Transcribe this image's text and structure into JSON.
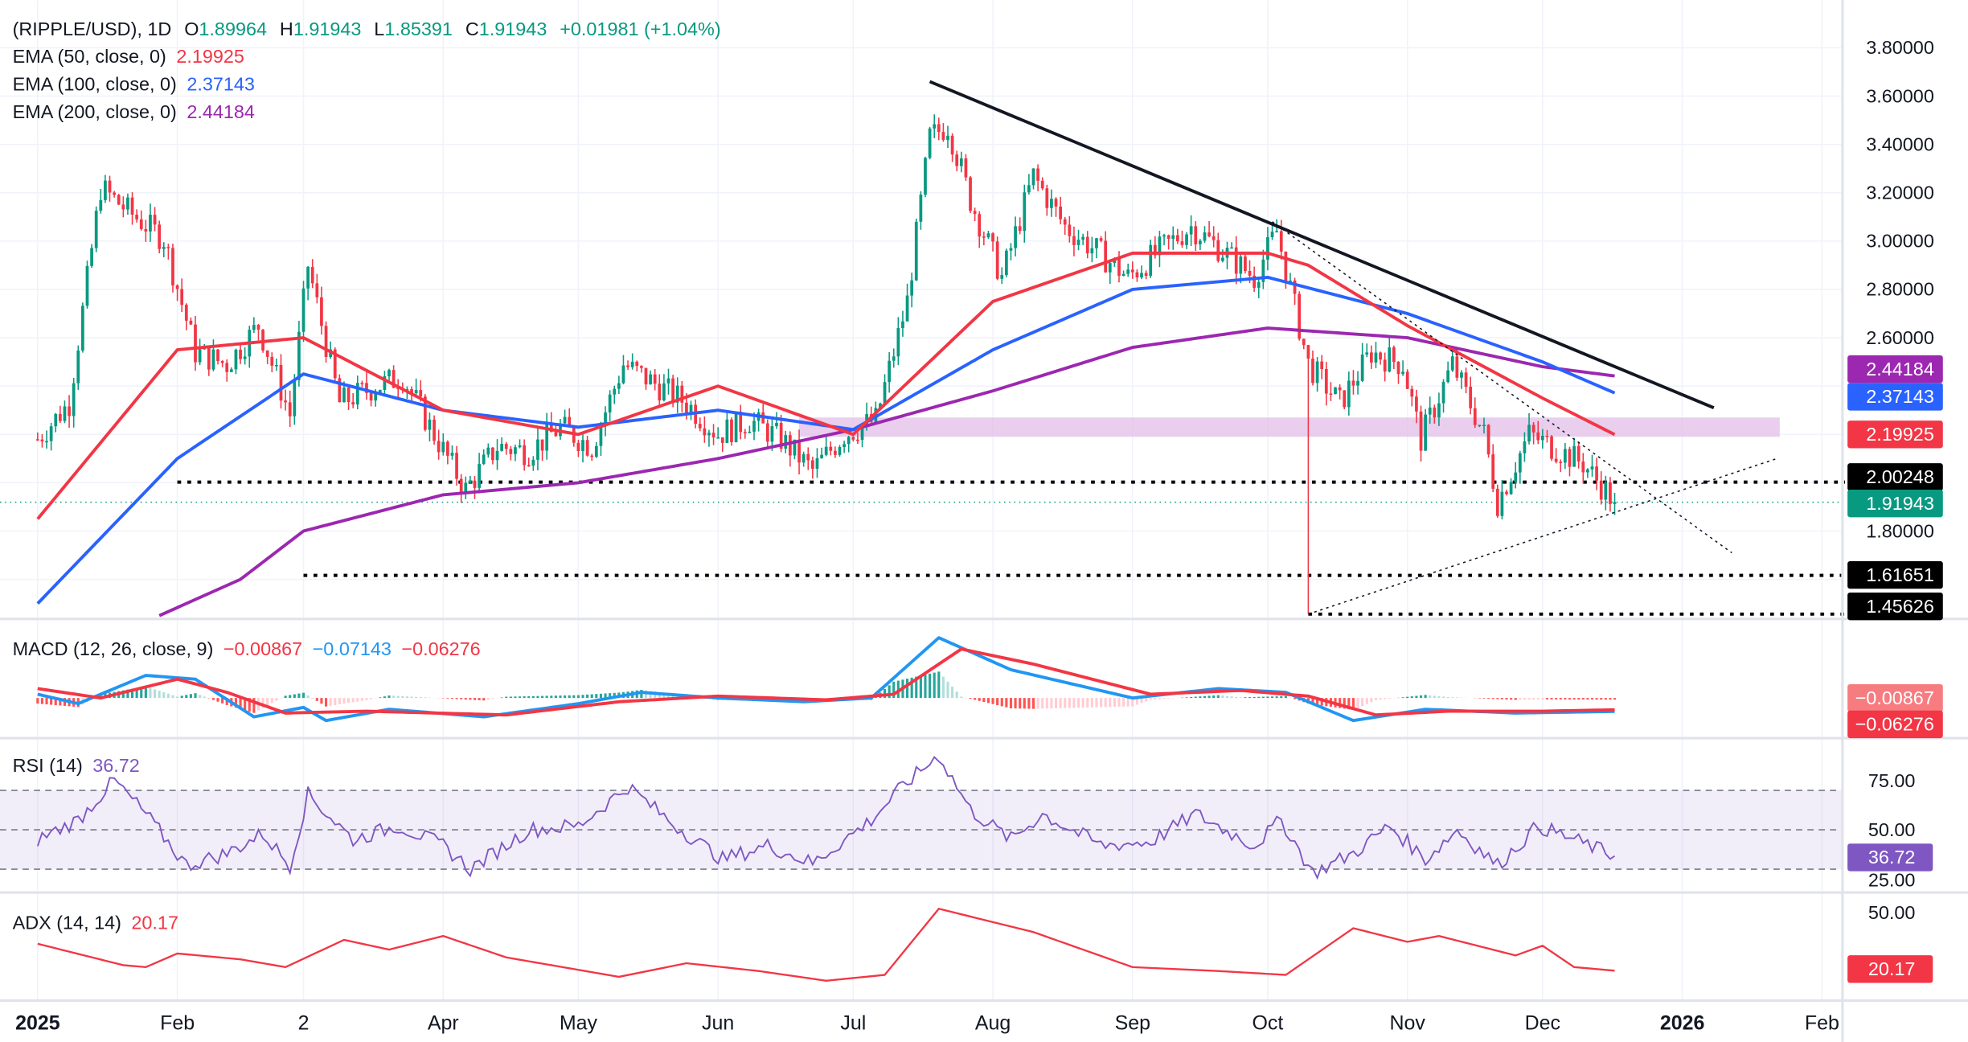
{
  "header": {
    "symbol": "(RIPPLE/USD), 1D",
    "o_label": "O",
    "o": "1.89964",
    "h_label": "H",
    "h": "1.91943",
    "l_label": "L",
    "l": "1.85391",
    "c_label": "C",
    "c": "1.91943",
    "change": "+0.01981 (+1.04%)"
  },
  "indicators": {
    "ema50": {
      "label": "EMA (50, close, 0)",
      "value": "2.19925",
      "color": "#f23645"
    },
    "ema100": {
      "label": "EMA (100, close, 0)",
      "value": "2.37143",
      "color": "#2962ff"
    },
    "ema200": {
      "label": "EMA (200, close, 0)",
      "value": "2.44184",
      "color": "#9c27b0"
    },
    "macd": {
      "label": "MACD (12, 26, close, 9)",
      "hist": "−0.00867",
      "macd": "−0.07143",
      "signal": "−0.06276"
    },
    "rsi": {
      "label": "RSI (14)",
      "value": "36.72",
      "color": "#7e57c2"
    },
    "adx": {
      "label": "ADX (14, 14)",
      "value": "20.17",
      "color": "#f23645"
    }
  },
  "price_axis": {
    "ticks": [
      "3.80000",
      "3.60000",
      "3.40000",
      "3.20000",
      "3.00000",
      "2.80000",
      "2.60000",
      "1.80000"
    ],
    "badges": {
      "ema200": "2.44184",
      "ema100": "2.37143",
      "ema50": "2.19925",
      "resistance": "2.00248",
      "last": "1.91943",
      "support1": "1.61651",
      "support2": "1.45626"
    }
  },
  "macd_axis": {
    "hist_badge": "−0.00867",
    "signal_badge": "−0.06276"
  },
  "rsi_axis": {
    "ticks": [
      "75.00",
      "50.00",
      "25.00"
    ],
    "badge": "36.72"
  },
  "adx_axis": {
    "ticks": [
      "50.00"
    ],
    "badge": "20.17"
  },
  "time_axis": {
    "labels": [
      {
        "text": "2025",
        "date": "2025-01-01",
        "bold": true
      },
      {
        "text": "Feb",
        "date": "2025-02-01"
      },
      {
        "text": "2",
        "date": "2025-03-01"
      },
      {
        "text": "Apr",
        "date": "2025-04-01"
      },
      {
        "text": "May",
        "date": "2025-05-01"
      },
      {
        "text": "Jun",
        "date": "2025-06-01"
      },
      {
        "text": "Jul",
        "date": "2025-07-01"
      },
      {
        "text": "Aug",
        "date": "2025-08-01"
      },
      {
        "text": "Sep",
        "date": "2025-09-01"
      },
      {
        "text": "Oct",
        "date": "2025-10-01"
      },
      {
        "text": "Nov",
        "date": "2025-11-01"
      },
      {
        "text": "Dec",
        "date": "2025-12-01"
      },
      {
        "text": "2026",
        "date": "2026-01-01",
        "bold": true
      },
      {
        "text": "Feb",
        "date": "2026-02-01"
      }
    ]
  },
  "colors": {
    "up": "#089981",
    "down": "#f23645",
    "macd": "#2196f3",
    "signal": "#f23645",
    "rsi": "#7e57c2",
    "adx": "#f23645",
    "zone": "#e1bee7"
  },
  "chart_data": {
    "type": "candlestick",
    "title": "(RIPPLE/USD), 1D",
    "ylim": [
      1.45,
      3.85
    ],
    "grid": true,
    "close": [
      [
        "2025-01-01",
        2.18
      ],
      [
        "2025-01-08",
        2.33
      ],
      [
        "2025-01-15",
        3.22
      ],
      [
        "2025-01-22",
        3.11
      ],
      [
        "2025-01-29",
        3.01
      ],
      [
        "2025-02-05",
        2.54
      ],
      [
        "2025-02-12",
        2.49
      ],
      [
        "2025-02-19",
        2.65
      ],
      [
        "2025-02-26",
        2.28
      ],
      [
        "2025-03-02",
        2.9
      ],
      [
        "2025-03-09",
        2.33
      ],
      [
        "2025-03-16",
        2.39
      ],
      [
        "2025-03-23",
        2.44
      ],
      [
        "2025-03-30",
        2.2
      ],
      [
        "2025-04-06",
        1.97
      ],
      [
        "2025-04-13",
        2.15
      ],
      [
        "2025-04-20",
        2.13
      ],
      [
        "2025-04-27",
        2.23
      ],
      [
        "2025-05-04",
        2.15
      ],
      [
        "2025-05-11",
        2.49
      ],
      [
        "2025-05-18",
        2.41
      ],
      [
        "2025-05-25",
        2.33
      ],
      [
        "2025-06-01",
        2.2
      ],
      [
        "2025-06-08",
        2.26
      ],
      [
        "2025-06-15",
        2.18
      ],
      [
        "2025-06-22",
        2.05
      ],
      [
        "2025-06-29",
        2.2
      ],
      [
        "2025-07-06",
        2.26
      ],
      [
        "2025-07-13",
        2.75
      ],
      [
        "2025-07-18",
        3.43
      ],
      [
        "2025-07-22",
        3.48
      ],
      [
        "2025-07-27",
        3.17
      ],
      [
        "2025-08-03",
        2.85
      ],
      [
        "2025-08-10",
        3.27
      ],
      [
        "2025-08-17",
        3.06
      ],
      [
        "2025-08-24",
        2.96
      ],
      [
        "2025-08-31",
        2.85
      ],
      [
        "2025-09-07",
        2.96
      ],
      [
        "2025-09-14",
        3.06
      ],
      [
        "2025-09-21",
        2.96
      ],
      [
        "2025-09-28",
        2.85
      ],
      [
        "2025-10-03",
        3.04
      ],
      [
        "2025-10-10",
        2.49
      ],
      [
        "2025-10-17",
        2.33
      ],
      [
        "2025-10-24",
        2.54
      ],
      [
        "2025-10-31",
        2.49
      ],
      [
        "2025-11-04",
        2.18
      ],
      [
        "2025-11-11",
        2.49
      ],
      [
        "2025-11-18",
        2.2
      ],
      [
        "2025-11-21",
        1.92
      ],
      [
        "2025-11-28",
        2.2
      ],
      [
        "2025-12-05",
        2.13
      ],
      [
        "2025-12-10",
        2.08
      ],
      [
        "2025-12-17",
        1.91943
      ]
    ],
    "ema50": [
      [
        "2025-01-01",
        1.85
      ],
      [
        "2025-02-01",
        2.55
      ],
      [
        "2025-03-01",
        2.6
      ],
      [
        "2025-04-01",
        2.3
      ],
      [
        "2025-05-01",
        2.2
      ],
      [
        "2025-06-01",
        2.4
      ],
      [
        "2025-07-01",
        2.2
      ],
      [
        "2025-08-01",
        2.75
      ],
      [
        "2025-09-01",
        2.95
      ],
      [
        "2025-10-01",
        2.95
      ],
      [
        "2025-10-10",
        2.9
      ],
      [
        "2025-11-01",
        2.65
      ],
      [
        "2025-12-01",
        2.35
      ],
      [
        "2025-12-17",
        2.19925
      ]
    ],
    "ema100": [
      [
        "2025-01-01",
        1.5
      ],
      [
        "2025-02-01",
        2.1
      ],
      [
        "2025-03-01",
        2.45
      ],
      [
        "2025-04-01",
        2.3
      ],
      [
        "2025-05-01",
        2.23
      ],
      [
        "2025-06-01",
        2.3
      ],
      [
        "2025-07-01",
        2.22
      ],
      [
        "2025-08-01",
        2.55
      ],
      [
        "2025-09-01",
        2.8
      ],
      [
        "2025-10-01",
        2.85
      ],
      [
        "2025-11-01",
        2.7
      ],
      [
        "2025-12-01",
        2.5
      ],
      [
        "2025-12-17",
        2.37143
      ]
    ],
    "ema200": [
      [
        "2025-01-28",
        1.45
      ],
      [
        "2025-02-15",
        1.6
      ],
      [
        "2025-03-01",
        1.8
      ],
      [
        "2025-04-01",
        1.95
      ],
      [
        "2025-05-01",
        2.0
      ],
      [
        "2025-06-01",
        2.1
      ],
      [
        "2025-07-01",
        2.22
      ],
      [
        "2025-08-01",
        2.38
      ],
      [
        "2025-09-01",
        2.56
      ],
      [
        "2025-10-01",
        2.64
      ],
      [
        "2025-11-01",
        2.6
      ],
      [
        "2025-12-01",
        2.48
      ],
      [
        "2025-12-17",
        2.44184
      ]
    ],
    "macd": [
      [
        "2025-01-01",
        0.02
      ],
      [
        "2025-01-10",
        -0.03
      ],
      [
        "2025-01-25",
        0.12
      ],
      [
        "2025-02-05",
        0.1
      ],
      [
        "2025-02-18",
        -0.1
      ],
      [
        "2025-03-01",
        -0.05
      ],
      [
        "2025-03-06",
        -0.12
      ],
      [
        "2025-03-20",
        -0.06
      ],
      [
        "2025-04-10",
        -0.1
      ],
      [
        "2025-05-01",
        -0.03
      ],
      [
        "2025-05-15",
        0.03
      ],
      [
        "2025-06-01",
        0.0
      ],
      [
        "2025-06-20",
        -0.02
      ],
      [
        "2025-07-05",
        0.0
      ],
      [
        "2025-07-20",
        0.32
      ],
      [
        "2025-08-05",
        0.15
      ],
      [
        "2025-09-01",
        0.0
      ],
      [
        "2025-09-20",
        0.05
      ],
      [
        "2025-10-05",
        0.03
      ],
      [
        "2025-10-20",
        -0.12
      ],
      [
        "2025-11-05",
        -0.06
      ],
      [
        "2025-11-25",
        -0.08
      ],
      [
        "2025-12-17",
        -0.07143
      ]
    ],
    "signal": [
      [
        "2025-01-01",
        0.05
      ],
      [
        "2025-01-15",
        0.0
      ],
      [
        "2025-02-01",
        0.1
      ],
      [
        "2025-02-12",
        0.03
      ],
      [
        "2025-02-25",
        -0.08
      ],
      [
        "2025-03-15",
        -0.07
      ],
      [
        "2025-04-15",
        -0.09
      ],
      [
        "2025-05-10",
        -0.02
      ],
      [
        "2025-06-01",
        0.01
      ],
      [
        "2025-06-25",
        -0.01
      ],
      [
        "2025-07-10",
        0.02
      ],
      [
        "2025-07-25",
        0.26
      ],
      [
        "2025-08-10",
        0.18
      ],
      [
        "2025-09-05",
        0.02
      ],
      [
        "2025-09-25",
        0.04
      ],
      [
        "2025-10-10",
        0.01
      ],
      [
        "2025-10-25",
        -0.09
      ],
      [
        "2025-11-10",
        -0.07
      ],
      [
        "2025-12-01",
        -0.07
      ],
      [
        "2025-12-17",
        -0.06276
      ]
    ],
    "rsi": [
      [
        "2025-01-01",
        45
      ],
      [
        "2025-01-10",
        55
      ],
      [
        "2025-01-18",
        75
      ],
      [
        "2025-01-25",
        58
      ],
      [
        "2025-02-03",
        32
      ],
      [
        "2025-02-12",
        38
      ],
      [
        "2025-02-20",
        48
      ],
      [
        "2025-02-26",
        32
      ],
      [
        "2025-03-02",
        68
      ],
      [
        "2025-03-12",
        45
      ],
      [
        "2025-03-22",
        52
      ],
      [
        "2025-04-01",
        42
      ],
      [
        "2025-04-07",
        30
      ],
      [
        "2025-04-20",
        50
      ],
      [
        "2025-05-01",
        52
      ],
      [
        "2025-05-12",
        72
      ],
      [
        "2025-05-22",
        53
      ],
      [
        "2025-06-02",
        35
      ],
      [
        "2025-06-12",
        42
      ],
      [
        "2025-06-22",
        33
      ],
      [
        "2025-07-05",
        55
      ],
      [
        "2025-07-12",
        72
      ],
      [
        "2025-07-20",
        88
      ],
      [
        "2025-07-27",
        60
      ],
      [
        "2025-08-05",
        45
      ],
      [
        "2025-08-12",
        58
      ],
      [
        "2025-08-25",
        42
      ],
      [
        "2025-09-05",
        44
      ],
      [
        "2025-09-15",
        58
      ],
      [
        "2025-09-28",
        42
      ],
      [
        "2025-10-04",
        55
      ],
      [
        "2025-10-11",
        28
      ],
      [
        "2025-10-20",
        38
      ],
      [
        "2025-10-28",
        52
      ],
      [
        "2025-11-05",
        35
      ],
      [
        "2025-11-12",
        50
      ],
      [
        "2025-11-21",
        32
      ],
      [
        "2025-11-30",
        52
      ],
      [
        "2025-12-08",
        45
      ],
      [
        "2025-12-17",
        36.72
      ]
    ],
    "adx": [
      [
        "2025-01-01",
        34
      ],
      [
        "2025-01-20",
        23
      ],
      [
        "2025-01-25",
        22
      ],
      [
        "2025-02-01",
        29
      ],
      [
        "2025-02-15",
        26
      ],
      [
        "2025-02-25",
        22
      ],
      [
        "2025-03-10",
        36
      ],
      [
        "2025-03-20",
        31
      ],
      [
        "2025-04-01",
        38
      ],
      [
        "2025-04-15",
        27
      ],
      [
        "2025-05-10",
        17
      ],
      [
        "2025-05-25",
        24
      ],
      [
        "2025-06-10",
        20
      ],
      [
        "2025-06-25",
        15
      ],
      [
        "2025-07-08",
        18
      ],
      [
        "2025-07-20",
        52
      ],
      [
        "2025-08-10",
        40
      ],
      [
        "2025-09-01",
        22
      ],
      [
        "2025-09-20",
        20
      ],
      [
        "2025-10-05",
        18
      ],
      [
        "2025-10-20",
        42
      ],
      [
        "2025-11-01",
        35
      ],
      [
        "2025-11-08",
        38
      ],
      [
        "2025-11-25",
        28
      ],
      [
        "2025-12-01",
        33
      ],
      [
        "2025-12-08",
        22
      ],
      [
        "2025-12-17",
        20.17
      ]
    ],
    "annotations": {
      "downtrend": [
        [
          "2025-07-18",
          3.66
        ],
        [
          "2026-01-08",
          2.31
        ]
      ],
      "dotted_down": [
        [
          "2025-10-02",
          3.08
        ],
        [
          "2026-01-12",
          1.71
        ]
      ],
      "dotted_up": [
        [
          "2025-10-10",
          1.45626
        ],
        [
          "2026-01-22",
          2.1
        ]
      ],
      "levels": [
        {
          "price": 2.00248,
          "from": "2025-02-01"
        },
        {
          "price": 1.61651,
          "from": "2025-03-01"
        },
        {
          "price": 1.45626,
          "from": "2025-10-10"
        }
      ],
      "zone": {
        "from": "2025-06-19",
        "low": 2.19,
        "high": 2.27
      }
    }
  }
}
